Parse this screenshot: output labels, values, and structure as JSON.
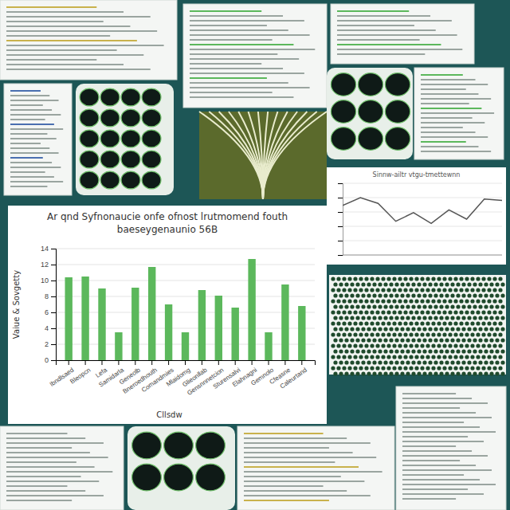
{
  "chart_data": [
    {
      "type": "bar",
      "title": "Ar qnd Syfnonaucie onfe ofnost lrutmomend fouth",
      "subtitle": "baeseygenaunio 56B",
      "y_label": "Vaiue & Sovgetty",
      "x_label": "Cllsdw",
      "categories": [
        "Ibndlsaed",
        "Bleopcn",
        "Lefa",
        "Samidarla",
        "Geneolb",
        "Bneroedhouth",
        "Comandmies",
        "Mlaidomg",
        "Glieonllab",
        "Gensnnnetcion",
        "Sturensalvi",
        "Elahnagni",
        "Gemnolo",
        "Cfeasne",
        "Caleurtand"
      ],
      "values": [
        10.4,
        10.5,
        9.0,
        3.5,
        9.1,
        11.7,
        7.0,
        3.5,
        8.8,
        8.1,
        6.6,
        12.7,
        3.5,
        9.5,
        6.8
      ],
      "color": "#5cb85c",
      "ylim": [
        0,
        14
      ],
      "yticks": [
        0,
        2,
        4,
        6,
        8,
        10,
        12,
        14
      ],
      "grid": true
    },
    {
      "type": "line",
      "title": "Sinnw-ailtr vtgu-tmettewnn",
      "x": [
        0,
        1,
        2,
        3,
        4,
        5,
        6,
        7,
        8,
        9
      ],
      "values": [
        6.9,
        8.0,
        7.2,
        4.7,
        5.9,
        4.4,
        6.3,
        5.0,
        7.8,
        7.6
      ],
      "color": "#555555",
      "xlim": [
        0,
        9
      ],
      "ylim": [
        0,
        10
      ],
      "yticks": [
        0,
        2,
        4,
        6,
        8,
        10
      ],
      "grid": true,
      "tick_labels": false
    }
  ]
}
